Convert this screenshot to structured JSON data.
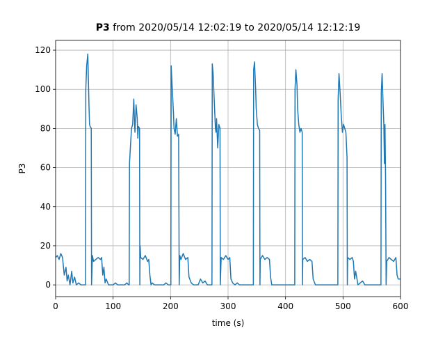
{
  "chart_data": {
    "type": "line",
    "title_bold": "P3",
    "title_rest": "from 2020/05/14 12:02:19 to 2020/05/14 12:12:19",
    "xlabel": "time (s)",
    "ylabel": "P3",
    "color": "#1f77b4",
    "grid": true,
    "xlim": [
      0,
      600
    ],
    "ylim": [
      -6,
      125
    ],
    "xticks": [
      0,
      100,
      200,
      300,
      400,
      500,
      600
    ],
    "yticks": [
      0,
      20,
      40,
      60,
      80,
      100,
      120
    ],
    "x": [
      0,
      3,
      6,
      9,
      12,
      15,
      18,
      20,
      22,
      25,
      28,
      30,
      33,
      36,
      40,
      44,
      48,
      51,
      52,
      52.5,
      54,
      56,
      57,
      58,
      59,
      60,
      62,
      62.5,
      63,
      64,
      66,
      70,
      74,
      78,
      80,
      82,
      84,
      86,
      88,
      92,
      96,
      100,
      104,
      108,
      112,
      116,
      120,
      124,
      127,
      128,
      128.5,
      130,
      132,
      134,
      136,
      137,
      138,
      140,
      142,
      143,
      144,
      146,
      146.5,
      147,
      148,
      152,
      156,
      160,
      162,
      164,
      166,
      168,
      172,
      176,
      180,
      184,
      188,
      192,
      196,
      200,
      200.5,
      201,
      203,
      205,
      206,
      208,
      210,
      212,
      214,
      215,
      216,
      218,
      222,
      226,
      230,
      232,
      236,
      240,
      244,
      248,
      252,
      256,
      260,
      264,
      268,
      272,
      272.5,
      274,
      276,
      278,
      279,
      280,
      282,
      284,
      286,
      286.5,
      288,
      292,
      296,
      300,
      303,
      305,
      308,
      312,
      316,
      320,
      324,
      328,
      332,
      336,
      340,
      344,
      344.5,
      346,
      348,
      349,
      351,
      353,
      355,
      355.5,
      356,
      360,
      364,
      368,
      372,
      374,
      376,
      380,
      384,
      388,
      392,
      396,
      400,
      404,
      408,
      412,
      416,
      416.5,
      418,
      420,
      421,
      423,
      425,
      427,
      429,
      429.5,
      430,
      434,
      438,
      442,
      446,
      448,
      452,
      456,
      460,
      464,
      468,
      472,
      476,
      480,
      484,
      488,
      491,
      491.5,
      493,
      495,
      497,
      499,
      501,
      503,
      505,
      507,
      507.5,
      508,
      512,
      516,
      518,
      520,
      522,
      526,
      530,
      534,
      538,
      542,
      546,
      550,
      554,
      558,
      562,
      566,
      566.5,
      568,
      570,
      571,
      572,
      573,
      574,
      575,
      576,
      580,
      584,
      588,
      592,
      594,
      596,
      600
    ],
    "values": [
      14,
      15,
      13,
      16,
      14,
      5,
      9,
      2,
      5,
      0,
      7,
      1,
      4,
      0,
      1,
      0,
      0,
      0,
      0,
      100,
      112,
      118,
      105,
      92,
      82,
      81,
      80,
      0,
      5,
      15,
      12,
      13,
      14,
      13,
      14,
      5,
      9,
      1,
      3,
      0,
      0,
      0,
      1,
      0,
      0,
      0,
      0,
      1,
      0,
      0,
      62,
      70,
      80,
      82,
      95,
      85,
      78,
      92,
      85,
      75,
      81,
      80,
      0,
      20,
      14,
      13,
      15,
      12,
      13,
      5,
      0,
      1,
      0,
      0,
      0,
      0,
      0,
      1,
      0,
      0,
      0,
      112,
      100,
      88,
      80,
      77,
      85,
      76,
      77,
      0,
      15,
      13,
      16,
      13,
      14,
      4,
      1,
      0,
      0,
      0,
      3,
      1,
      2,
      0,
      0,
      0,
      113,
      108,
      94,
      80,
      78,
      85,
      70,
      82,
      80,
      0,
      14,
      13,
      15,
      13,
      14,
      3,
      1,
      0,
      1,
      0,
      0,
      0,
      0,
      0,
      0,
      0,
      110,
      114,
      100,
      90,
      82,
      80,
      79,
      0,
      13,
      15,
      13,
      14,
      13,
      4,
      0,
      0,
      0,
      0,
      0,
      0,
      0,
      0,
      0,
      0,
      0,
      100,
      110,
      102,
      90,
      82,
      78,
      80,
      78,
      0,
      13,
      14,
      12,
      13,
      12,
      3,
      0,
      0,
      0,
      0,
      0,
      0,
      0,
      0,
      0,
      0,
      0,
      95,
      108,
      98,
      86,
      78,
      82,
      80,
      78,
      65,
      0,
      14,
      13,
      14,
      12,
      3,
      7,
      0,
      1,
      2,
      0,
      0,
      0,
      0,
      0,
      0,
      0,
      0,
      98,
      108,
      90,
      82,
      62,
      82,
      55,
      0,
      12,
      14,
      13,
      12,
      14,
      5,
      3,
      3
    ]
  }
}
